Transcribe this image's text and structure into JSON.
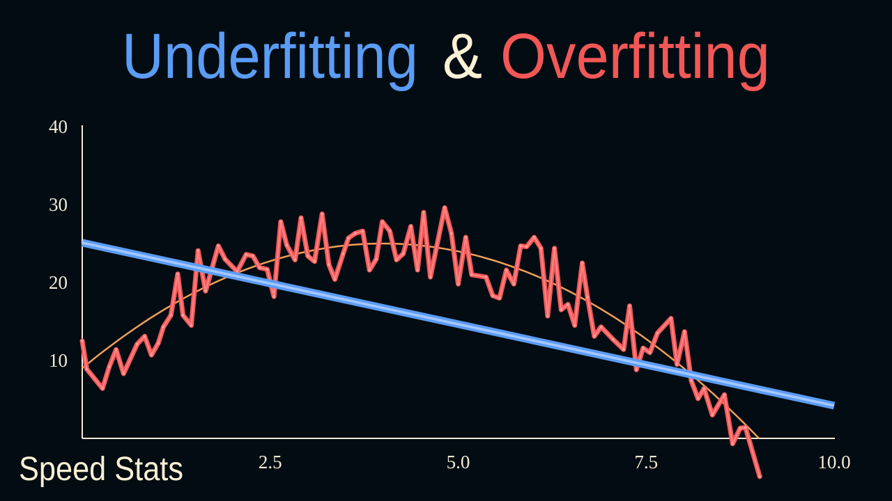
{
  "title": {
    "part1": "Underfitting",
    "part2": "&",
    "part3": "Overfitting",
    "colors": {
      "part1": "#5b9cf5",
      "part2": "#fdf0d5",
      "part3": "#f25757"
    }
  },
  "brand": "Speed Stats",
  "chart_data": {
    "type": "line",
    "xlim": [
      0,
      10
    ],
    "ylim": [
      0,
      40
    ],
    "grid": false,
    "x_ticks": [
      "2.5",
      "5.0",
      "7.5",
      "10.0"
    ],
    "x_tick_values": [
      2.5,
      5.0,
      7.5,
      10.0
    ],
    "y_ticks": [
      "10",
      "20",
      "30",
      "40"
    ],
    "y_tick_values": [
      10,
      20,
      30,
      40
    ],
    "axis_color": "#f3ecd9",
    "series": [
      {
        "kind": "linear-fit",
        "color": "#5b9cf5",
        "x": [
          0,
          10
        ],
        "y": [
          25.1,
          4.2
        ]
      },
      {
        "kind": "quadratic-fit",
        "color": "#f0a05a",
        "formula": "y = 25 - (x - 4)^2",
        "x_range": [
          0,
          9
        ]
      },
      {
        "kind": "overfit",
        "color": "#f25757",
        "x": [
          0,
          0.06,
          0.27,
          0.36,
          0.45,
          0.55,
          0.73,
          0.83,
          0.92,
          1.01,
          1.08,
          1.18,
          1.27,
          1.34,
          1.45,
          1.54,
          1.64,
          1.81,
          1.9,
          2.06,
          2.18,
          2.27,
          2.36,
          2.46,
          2.55,
          2.64,
          2.72,
          2.83,
          2.91,
          3.0,
          3.09,
          3.19,
          3.28,
          3.36,
          3.47,
          3.54,
          3.63,
          3.73,
          3.82,
          3.91,
          3.99,
          4.09,
          4.18,
          4.27,
          4.37,
          4.46,
          4.54,
          4.63,
          4.82,
          4.91,
          5.0,
          5.1,
          5.18,
          5.37,
          5.46,
          5.55,
          5.64,
          5.74,
          5.83,
          5.91,
          6.01,
          6.1,
          6.19,
          6.28,
          6.37,
          6.46,
          6.55,
          6.65,
          6.72,
          6.81,
          6.9,
          7.06,
          7.2,
          7.28,
          7.37,
          7.46,
          7.55,
          7.65,
          7.83,
          7.91,
          8.01,
          8.1,
          8.19,
          8.27,
          8.38,
          8.54,
          8.65,
          8.75,
          8.82,
          9.01
        ],
        "y": [
          12.5,
          8.9,
          6.4,
          9.2,
          11.4,
          8.3,
          12.1,
          13.1,
          10.7,
          12.2,
          14.3,
          15.8,
          21.1,
          15.8,
          14.5,
          24.1,
          18.9,
          24.7,
          23.0,
          21.4,
          23.6,
          23.4,
          21.9,
          21.7,
          18.2,
          27.8,
          24.8,
          22.9,
          28.3,
          23.4,
          22.7,
          28.8,
          22.3,
          20.4,
          23.7,
          25.7,
          26.3,
          26.6,
          21.6,
          23.0,
          27.8,
          26.6,
          22.9,
          23.7,
          27.2,
          21.6,
          29.0,
          20.7,
          29.6,
          26.3,
          19.8,
          25.8,
          21.0,
          20.7,
          18.3,
          18.0,
          21.6,
          19.8,
          24.7,
          24.6,
          25.8,
          24.4,
          15.7,
          24.4,
          16.5,
          17.2,
          14.5,
          22.5,
          18.1,
          13.1,
          14.3,
          12.7,
          11.4,
          17.0,
          8.8,
          11.6,
          11.0,
          13.5,
          15.4,
          9.5,
          13.7,
          7.4,
          5.1,
          6.4,
          3.0,
          5.6,
          -0.7,
          1.3,
          1.4,
          -4.9
        ]
      }
    ]
  }
}
